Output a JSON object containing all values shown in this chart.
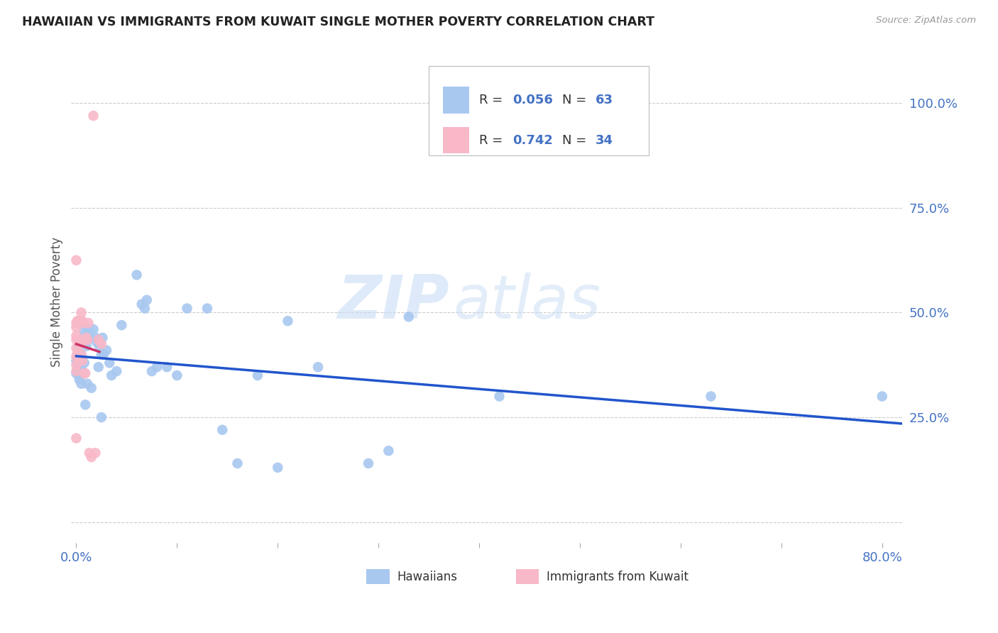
{
  "title": "HAWAIIAN VS IMMIGRANTS FROM KUWAIT SINGLE MOTHER POVERTY CORRELATION CHART",
  "source": "Source: ZipAtlas.com",
  "ylabel": "Single Mother Poverty",
  "xlim": [
    -0.005,
    0.82
  ],
  "ylim": [
    -0.05,
    1.1
  ],
  "hawaiian_R": 0.056,
  "hawaiian_N": 63,
  "kuwait_R": 0.742,
  "kuwait_N": 34,
  "hawaiian_color": "#a8c8f0",
  "kuwait_color": "#f8b8c8",
  "hawaiian_line_color": "#2255cc",
  "kuwait_line_color": "#cc3366",
  "background_color": "#ffffff",
  "watermark_zip": "ZIP",
  "watermark_atlas": "atlas",
  "hawaiian_x": [
    0.0,
    0.0,
    0.001,
    0.001,
    0.002,
    0.002,
    0.002,
    0.003,
    0.003,
    0.003,
    0.003,
    0.004,
    0.005,
    0.005,
    0.005,
    0.006,
    0.007,
    0.007,
    0.008,
    0.008,
    0.009,
    0.01,
    0.01,
    0.011,
    0.012,
    0.013,
    0.015,
    0.017,
    0.019,
    0.02,
    0.022,
    0.023,
    0.025,
    0.025,
    0.026,
    0.027,
    0.03,
    0.033,
    0.035,
    0.04,
    0.045,
    0.06,
    0.065,
    0.068,
    0.07,
    0.075,
    0.08,
    0.09,
    0.1,
    0.11,
    0.13,
    0.145,
    0.16,
    0.18,
    0.2,
    0.21,
    0.24,
    0.29,
    0.31,
    0.33,
    0.42,
    0.63,
    0.8
  ],
  "hawaiian_y": [
    0.385,
    0.355,
    0.4,
    0.36,
    0.38,
    0.375,
    0.42,
    0.375,
    0.36,
    0.35,
    0.34,
    0.38,
    0.4,
    0.36,
    0.33,
    0.36,
    0.46,
    0.44,
    0.43,
    0.38,
    0.28,
    0.43,
    0.42,
    0.33,
    0.46,
    0.44,
    0.32,
    0.46,
    0.44,
    0.43,
    0.37,
    0.42,
    0.4,
    0.25,
    0.44,
    0.4,
    0.41,
    0.38,
    0.35,
    0.36,
    0.47,
    0.59,
    0.52,
    0.51,
    0.53,
    0.36,
    0.37,
    0.37,
    0.35,
    0.51,
    0.51,
    0.22,
    0.14,
    0.35,
    0.13,
    0.48,
    0.37,
    0.14,
    0.17,
    0.49,
    0.3,
    0.3,
    0.3
  ],
  "kuwait_x": [
    0.0,
    0.0,
    0.0,
    0.0,
    0.0,
    0.0,
    0.0,
    0.0,
    0.0,
    0.0,
    0.001,
    0.001,
    0.002,
    0.002,
    0.003,
    0.003,
    0.004,
    0.005,
    0.005,
    0.006,
    0.006,
    0.007,
    0.008,
    0.008,
    0.009,
    0.01,
    0.011,
    0.012,
    0.013,
    0.015,
    0.017,
    0.019,
    0.022,
    0.025
  ],
  "kuwait_y": [
    0.625,
    0.475,
    0.465,
    0.445,
    0.435,
    0.415,
    0.395,
    0.375,
    0.36,
    0.2,
    0.48,
    0.4,
    0.48,
    0.43,
    0.435,
    0.385,
    0.425,
    0.5,
    0.4,
    0.48,
    0.385,
    0.475,
    0.435,
    0.355,
    0.355,
    0.44,
    0.435,
    0.475,
    0.165,
    0.155,
    0.97,
    0.165,
    0.435,
    0.425
  ]
}
